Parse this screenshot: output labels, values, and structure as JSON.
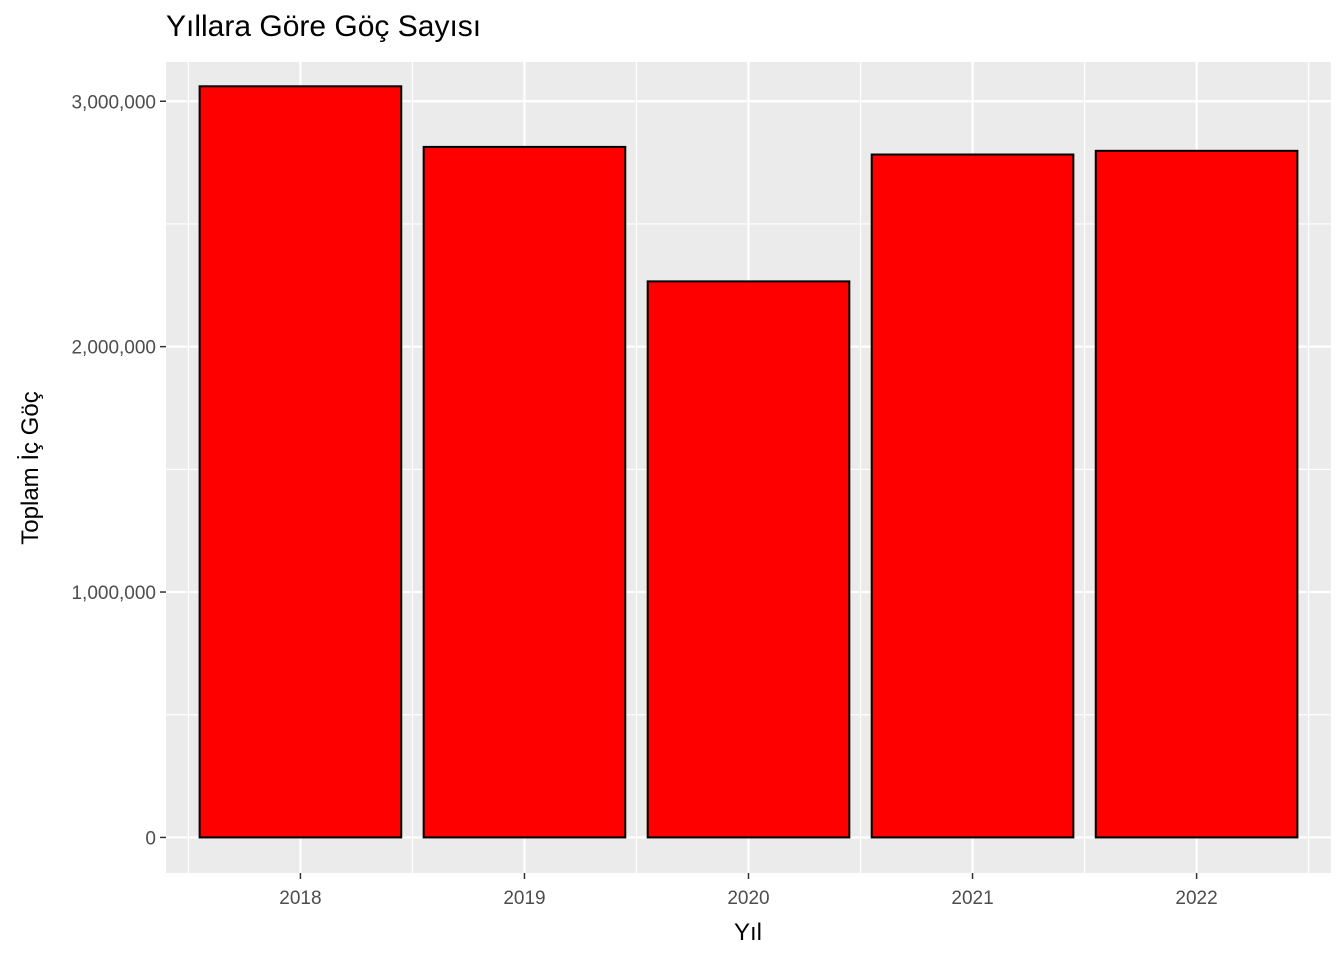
{
  "chart_data": {
    "type": "bar",
    "title": "Yıllara Göre Göç Sayısı",
    "xlabel": "Yıl",
    "ylabel": "Toplam İç Göç",
    "categories": [
      "2018",
      "2019",
      "2020",
      "2021",
      "2022"
    ],
    "values": [
      3061000,
      2814000,
      2266000,
      2783000,
      2798000
    ],
    "ylim": [
      -145000,
      3160000
    ],
    "yticks": [
      0,
      1000000,
      2000000,
      3000000
    ],
    "ytick_labels": [
      "0",
      "1,000,000",
      "2,000,000",
      "3,000,000"
    ],
    "grid": true,
    "legend": "none",
    "colors": {
      "bar_fill": "#ff0000",
      "bar_stroke": "#000000",
      "panel_background": "#ebebeb",
      "grid_line": "#ffffff"
    }
  }
}
